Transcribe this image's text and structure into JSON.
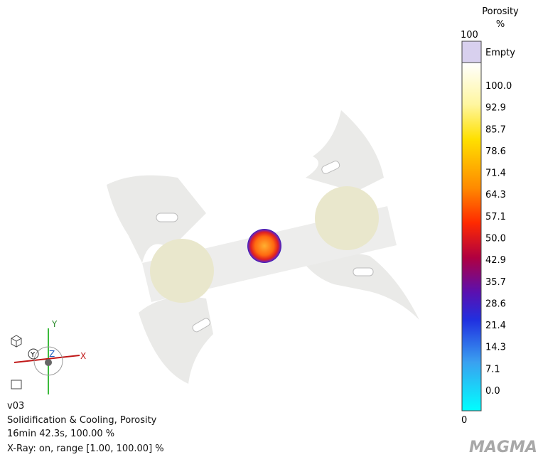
{
  "legend": {
    "title": "Porosity",
    "unit": "%",
    "max_label": "100",
    "min_label": "0",
    "empty_label": "Empty",
    "ticks": [
      "100.0",
      "92.9",
      "85.7",
      "78.6",
      "71.4",
      "64.3",
      "57.1",
      "50.0",
      "42.9",
      "35.7",
      "28.6",
      "21.4",
      "14.3",
      "7.1",
      "0.0"
    ]
  },
  "axes": {
    "x": "X",
    "y": "Y",
    "z": "Z",
    "view": "Y"
  },
  "info": {
    "version": "v03",
    "process": "Solidification & Cooling, Porosity",
    "time": "16min 42.3s, 100.00 %",
    "xray": "X-Ray: on, range [1.00, 100.00] %"
  },
  "logo": "MAGMA"
}
